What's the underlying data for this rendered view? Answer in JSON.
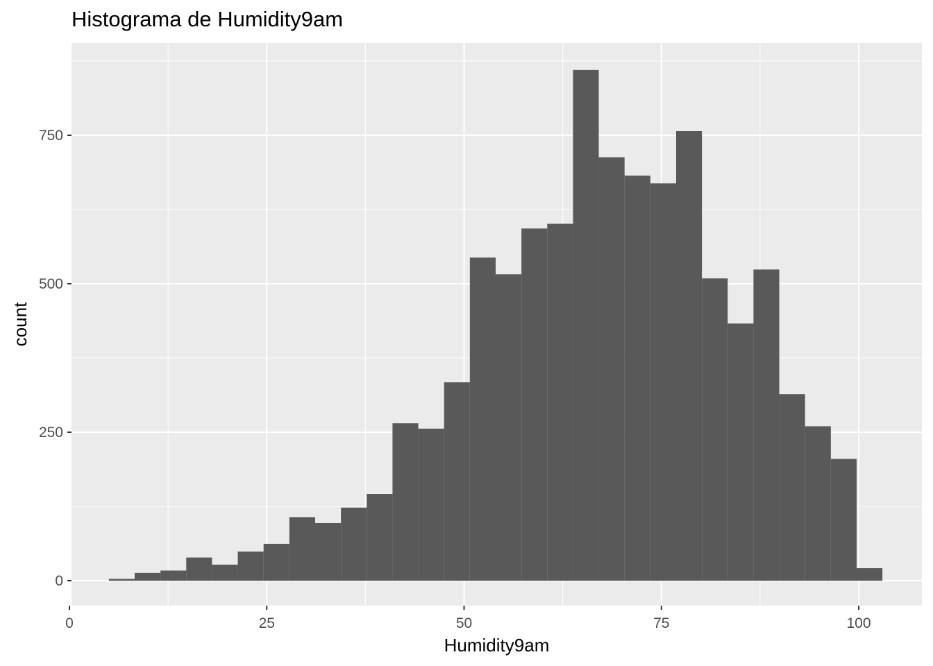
{
  "chart_data": {
    "type": "bar",
    "subtype": "histogram",
    "title": "Histograma de Humidity9am",
    "xlabel": "Humidity9am",
    "ylabel": "count",
    "bin_width": 3.2667,
    "bin_start": 5.0,
    "counts": [
      3,
      13,
      17,
      39,
      27,
      49,
      62,
      107,
      97,
      123,
      146,
      265,
      256,
      334,
      544,
      516,
      593,
      601,
      860,
      713,
      682,
      669,
      757,
      509,
      433,
      524,
      314,
      260,
      205,
      21
    ],
    "xlim": [
      0,
      104
    ],
    "ylim": [
      0,
      865
    ],
    "x_ticks": [
      0,
      25,
      50,
      75,
      100
    ],
    "y_ticks": [
      0,
      250,
      500,
      750
    ],
    "grid": true,
    "colors": {
      "panel": "#EBEBEB",
      "grid": "#FFFFFF",
      "bar": "#595959",
      "tick": "#333333"
    }
  }
}
